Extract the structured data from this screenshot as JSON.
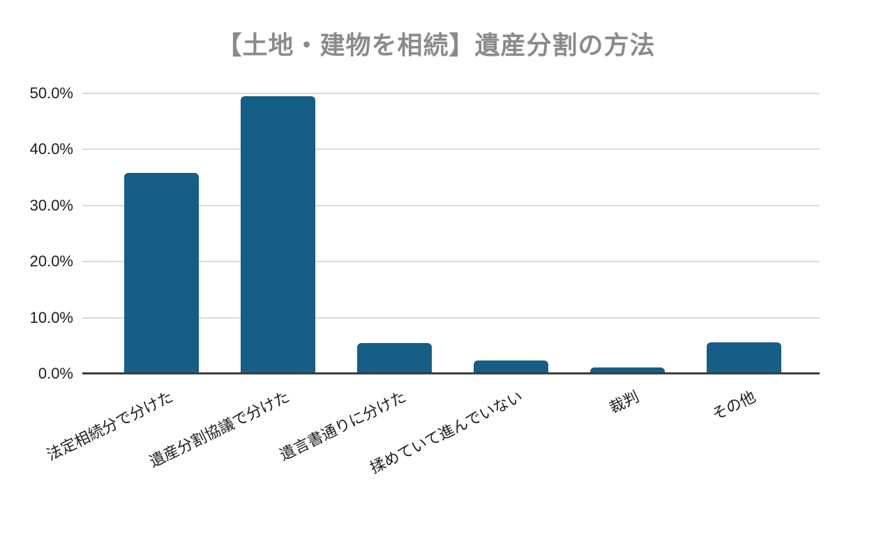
{
  "chart_data": {
    "type": "bar",
    "title": "【土地・建物を相続】遺産分割の方法",
    "categories": [
      "法定相続分で分けた",
      "遺産分割協議で分けた",
      "遺言書通りに分けた",
      "揉めていて進んでいない",
      "裁判",
      "その他"
    ],
    "values": [
      35.8,
      49.5,
      5.5,
      2.4,
      1.1,
      5.6
    ],
    "value_unit": "%",
    "xlabel": "",
    "ylabel": "",
    "ylim": [
      0,
      50
    ],
    "ytick_values": [
      0,
      10,
      20,
      30,
      40,
      50
    ],
    "ytick_labels": [
      "0.0%",
      "10.0%",
      "20.0%",
      "30.0%",
      "40.0%",
      "50.0%"
    ],
    "grid": true,
    "legend": false,
    "colors": {
      "bar": "#155e85",
      "title": "#8a8a8a",
      "axis_text": "#1c1c1c",
      "gridline": "#d9d9d9",
      "axis_line": "#3d3d3d",
      "background": "#ffffff"
    }
  }
}
